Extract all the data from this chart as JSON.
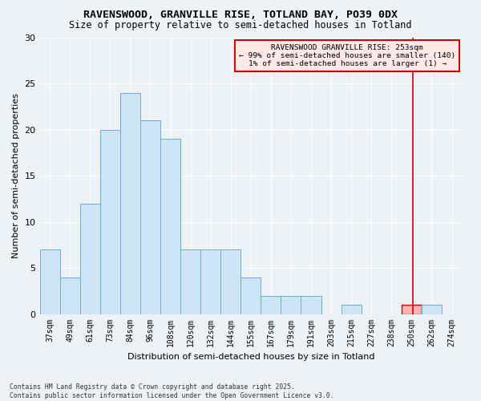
{
  "title1": "RAVENSWOOD, GRANVILLE RISE, TOTLAND BAY, PO39 0DX",
  "title2": "Size of property relative to semi-detached houses in Totland",
  "xlabel": "Distribution of semi-detached houses by size in Totland",
  "ylabel": "Number of semi-detached properties",
  "footnote1": "Contains HM Land Registry data © Crown copyright and database right 2025.",
  "footnote2": "Contains public sector information licensed under the Open Government Licence v3.0.",
  "bin_labels": [
    "37sqm",
    "49sqm",
    "61sqm",
    "73sqm",
    "84sqm",
    "96sqm",
    "108sqm",
    "120sqm",
    "132sqm",
    "144sqm",
    "155sqm",
    "167sqm",
    "179sqm",
    "191sqm",
    "203sqm",
    "215sqm",
    "227sqm",
    "238sqm",
    "250sqm",
    "262sqm",
    "274sqm"
  ],
  "bar_heights": [
    7,
    4,
    12,
    20,
    24,
    21,
    19,
    7,
    7,
    7,
    4,
    2,
    2,
    2,
    0,
    1,
    0,
    0,
    1,
    1,
    0
  ],
  "bar_color": "#cce5f5",
  "bar_edge_color": "#6aaed6",
  "highlight_bar_index": 18,
  "highlight_color": "#ffb3b3",
  "highlight_edge_color": "#cc0000",
  "vline_color": "#cc0000",
  "vline_x": 18.08,
  "annotation_title": "RAVENSWOOD GRANVILLE RISE: 253sqm",
  "annotation_line1": "← 99% of semi-detached houses are smaller (140)",
  "annotation_line2": "1% of semi-detached houses are larger (1) →",
  "annotation_box_facecolor": "#ffe8e8",
  "annotation_box_edgecolor": "#cc0000",
  "bg_color": "#eef2f7",
  "grid_color": "#ffffff",
  "ylim": [
    0,
    30
  ],
  "yticks": [
    0,
    5,
    10,
    15,
    20,
    25,
    30
  ],
  "title1_fontsize": 9.5,
  "title2_fontsize": 8.5,
  "xlabel_fontsize": 8,
  "ylabel_fontsize": 8,
  "tick_fontsize": 7,
  "annot_fontsize": 6.8,
  "footnote_fontsize": 5.8
}
